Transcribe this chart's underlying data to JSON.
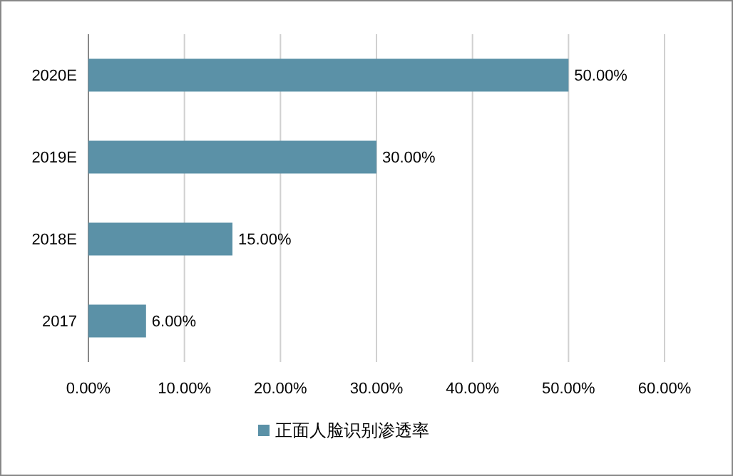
{
  "chart_data": {
    "type": "bar",
    "orientation": "horizontal",
    "categories": [
      "2020E",
      "2019E",
      "2018E",
      "2017"
    ],
    "series": [
      {
        "name": "正面人脸识别渗透率",
        "color": "#5b91a7",
        "values": [
          50,
          30,
          15,
          6
        ],
        "value_labels": [
          "50.00%",
          "30.00%",
          "15.00%",
          "6.00%"
        ]
      }
    ],
    "xlim": [
      0,
      60
    ],
    "xticks": [
      {
        "value": 0,
        "label": "0.00%"
      },
      {
        "value": 10,
        "label": "10.00%"
      },
      {
        "value": 20,
        "label": "20.00%"
      },
      {
        "value": 30,
        "label": "30.00%"
      },
      {
        "value": 40,
        "label": "40.00%"
      },
      {
        "value": 50,
        "label": "50.00%"
      },
      {
        "value": 60,
        "label": "60.00%"
      }
    ],
    "grid": "x",
    "legend": "bottom"
  }
}
